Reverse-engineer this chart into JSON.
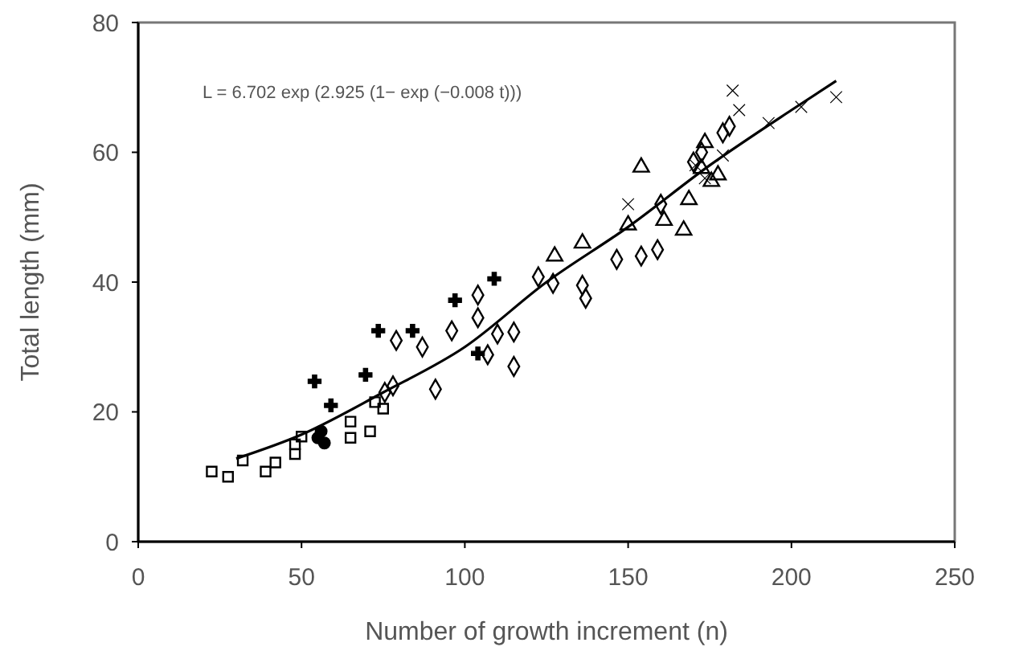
{
  "chart_data": {
    "type": "scatter",
    "xlabel": "Number of growth increment (n)",
    "ylabel": "Total length (mm)",
    "xlim": [
      0,
      250
    ],
    "xticks": [
      0,
      50,
      100,
      150,
      200,
      250
    ],
    "ylim": [
      0,
      80
    ],
    "yticks": [
      0,
      20,
      40,
      60,
      80
    ],
    "grid": false,
    "annotations": [
      "L = 6.702 exp (2.925 (1− exp (−0.008 t)))"
    ],
    "series": [
      {
        "color": "#000000",
        "marker": "square",
        "x": [
          22.5,
          27.5,
          32,
          39,
          42,
          48,
          48,
          50,
          65,
          71,
          72.5,
          75,
          65
        ],
        "values": [
          10.8,
          10,
          12.5,
          10.8,
          12.2,
          15,
          13.5,
          16.2,
          16,
          17,
          21.5,
          20.5,
          18.5
        ]
      },
      {
        "color": "#000000",
        "marker": "circle",
        "x": [
          56,
          57,
          55
        ],
        "values": [
          17,
          15.2,
          16
        ]
      },
      {
        "color": "#000000",
        "marker": "cross",
        "x": [
          54,
          59,
          69.6,
          73.5,
          84,
          97,
          109,
          104
        ],
        "values": [
          24.7,
          21,
          25.7,
          32.5,
          32.5,
          37.2,
          40.5,
          29
        ]
      },
      {
        "color": "#000000",
        "marker": "diamond",
        "x": [
          79,
          78,
          91,
          96,
          104,
          104,
          110,
          115,
          115,
          107,
          122.5,
          127,
          136,
          137,
          146.5,
          154,
          159,
          160,
          170,
          172.5,
          179,
          181,
          87,
          75.5
        ],
        "values": [
          31,
          24,
          23.5,
          32.5,
          38,
          34.5,
          32,
          32.3,
          27,
          28.8,
          40.8,
          39.8,
          39.5,
          37.5,
          43.5,
          44,
          45,
          52,
          58.5,
          60,
          63,
          64,
          30,
          23
        ]
      },
      {
        "color": "#000000",
        "marker": "triangle",
        "x": [
          127.5,
          136,
          150,
          154,
          161,
          167,
          168.6,
          172.5,
          175.5,
          177.5,
          173.5
        ],
        "values": [
          44,
          46,
          48.8,
          57.7,
          49.5,
          48,
          52.7,
          57.5,
          55.5,
          56.5,
          61.5
        ]
      },
      {
        "color": "#000000",
        "marker": "x",
        "x": [
          150,
          182,
          184,
          179,
          193,
          203,
          213.7,
          170.6,
          173.5
        ],
        "values": [
          52,
          69.5,
          66.5,
          59.5,
          64.5,
          67,
          68.5,
          58,
          56
        ]
      },
      {
        "type": "line",
        "color": "#000000",
        "marker": "none",
        "line_style": "solid",
        "x": [
          30,
          50,
          75,
          100,
          125,
          150,
          175,
          200,
          213.7
        ],
        "values": [
          12.8,
          16.5,
          23,
          30,
          40,
          48.5,
          58,
          66.5,
          71
        ]
      }
    ]
  }
}
